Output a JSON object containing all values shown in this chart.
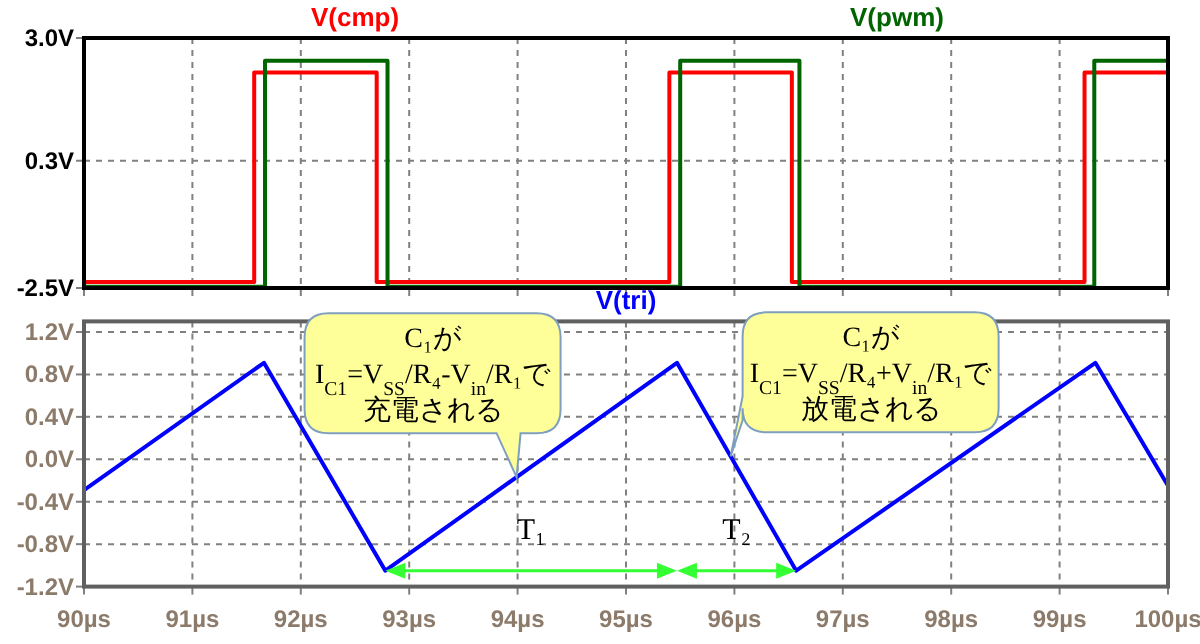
{
  "chart_data": [
    {
      "type": "step",
      "xlim": [
        90,
        100
      ],
      "xticks": [
        {
          "value": 90,
          "label": null
        },
        {
          "value": 91,
          "label": null
        },
        {
          "value": 92,
          "label": null
        },
        {
          "value": 93,
          "label": null
        },
        {
          "value": 94,
          "label": null
        },
        {
          "value": 95,
          "label": null
        },
        {
          "value": 96,
          "label": null
        },
        {
          "value": 97,
          "label": null
        },
        {
          "value": 98,
          "label": null
        },
        {
          "value": 99,
          "label": null
        },
        {
          "value": 100,
          "label": null
        }
      ],
      "ylim": [
        -2.5,
        3.0
      ],
      "yticks": [
        {
          "value": -2.5,
          "label": "-2.5V"
        },
        {
          "value": 0.3,
          "label": "0.3V"
        },
        {
          "value": 3.0,
          "label": "3.0V"
        }
      ],
      "tick_labels": "y",
      "grid": true,
      "legend": "top",
      "series": [
        {
          "name": "V(cmp)",
          "color": "#ff0000",
          "x": [
            90,
            91.57,
            92.7,
            95.4,
            96.53,
            99.23,
            100
          ],
          "values": [
            -2.37,
            2.24,
            -2.37,
            2.24,
            -2.37,
            2.24,
            2.24
          ]
        },
        {
          "name": "V(pwm)",
          "color": "#006400",
          "x": [
            90,
            91.67,
            92.8,
            95.5,
            96.6,
            99.32,
            100
          ],
          "values": [
            -2.47,
            2.5,
            -2.47,
            2.5,
            -2.47,
            2.5,
            2.5
          ]
        }
      ]
    },
    {
      "type": "line",
      "xlim": [
        90,
        100
      ],
      "xticks": [
        {
          "value": 90,
          "label": "90µs"
        },
        {
          "value": 91,
          "label": "91µs"
        },
        {
          "value": 92,
          "label": "92µs"
        },
        {
          "value": 93,
          "label": "93µs"
        },
        {
          "value": 94,
          "label": "94µs"
        },
        {
          "value": 95,
          "label": "95µs"
        },
        {
          "value": 96,
          "label": "96µs"
        },
        {
          "value": 97,
          "label": "97µs"
        },
        {
          "value": 98,
          "label": "98µs"
        },
        {
          "value": 99,
          "label": "99µs"
        },
        {
          "value": 100,
          "label": "100µs"
        }
      ],
      "ylim": [
        -1.2,
        1.3
      ],
      "yticks": [
        {
          "value": -1.2,
          "label": "-1.2V"
        },
        {
          "value": -0.8,
          "label": "-0.8V"
        },
        {
          "value": -0.4,
          "label": "-0.4V"
        },
        {
          "value": 0.0,
          "label": "0.0V"
        },
        {
          "value": 0.4,
          "label": "0.4V"
        },
        {
          "value": 0.8,
          "label": "0.8V"
        },
        {
          "value": 1.2,
          "label": "1.2V"
        }
      ],
      "grid": true,
      "legend": "top",
      "series": [
        {
          "name": "V(tri)",
          "color": "#0000ff",
          "x": [
            90,
            91.66,
            92.78,
            95.47,
            96.57,
            99.33,
            100
          ],
          "values": [
            -0.29,
            0.91,
            -1.05,
            0.91,
            -1.05,
            0.91,
            -0.25
          ]
        }
      ],
      "annotations": [
        "C₁がI$_{C1}$=V$_{SS}$/R₄-V$_{in}$/R₁で充電される",
        "C₁がI$_{C1}$=V$_{SS}$/R₄+V$_{in}$/R₁で放電される",
        "T₁",
        "T₂"
      ]
    }
  ]
}
